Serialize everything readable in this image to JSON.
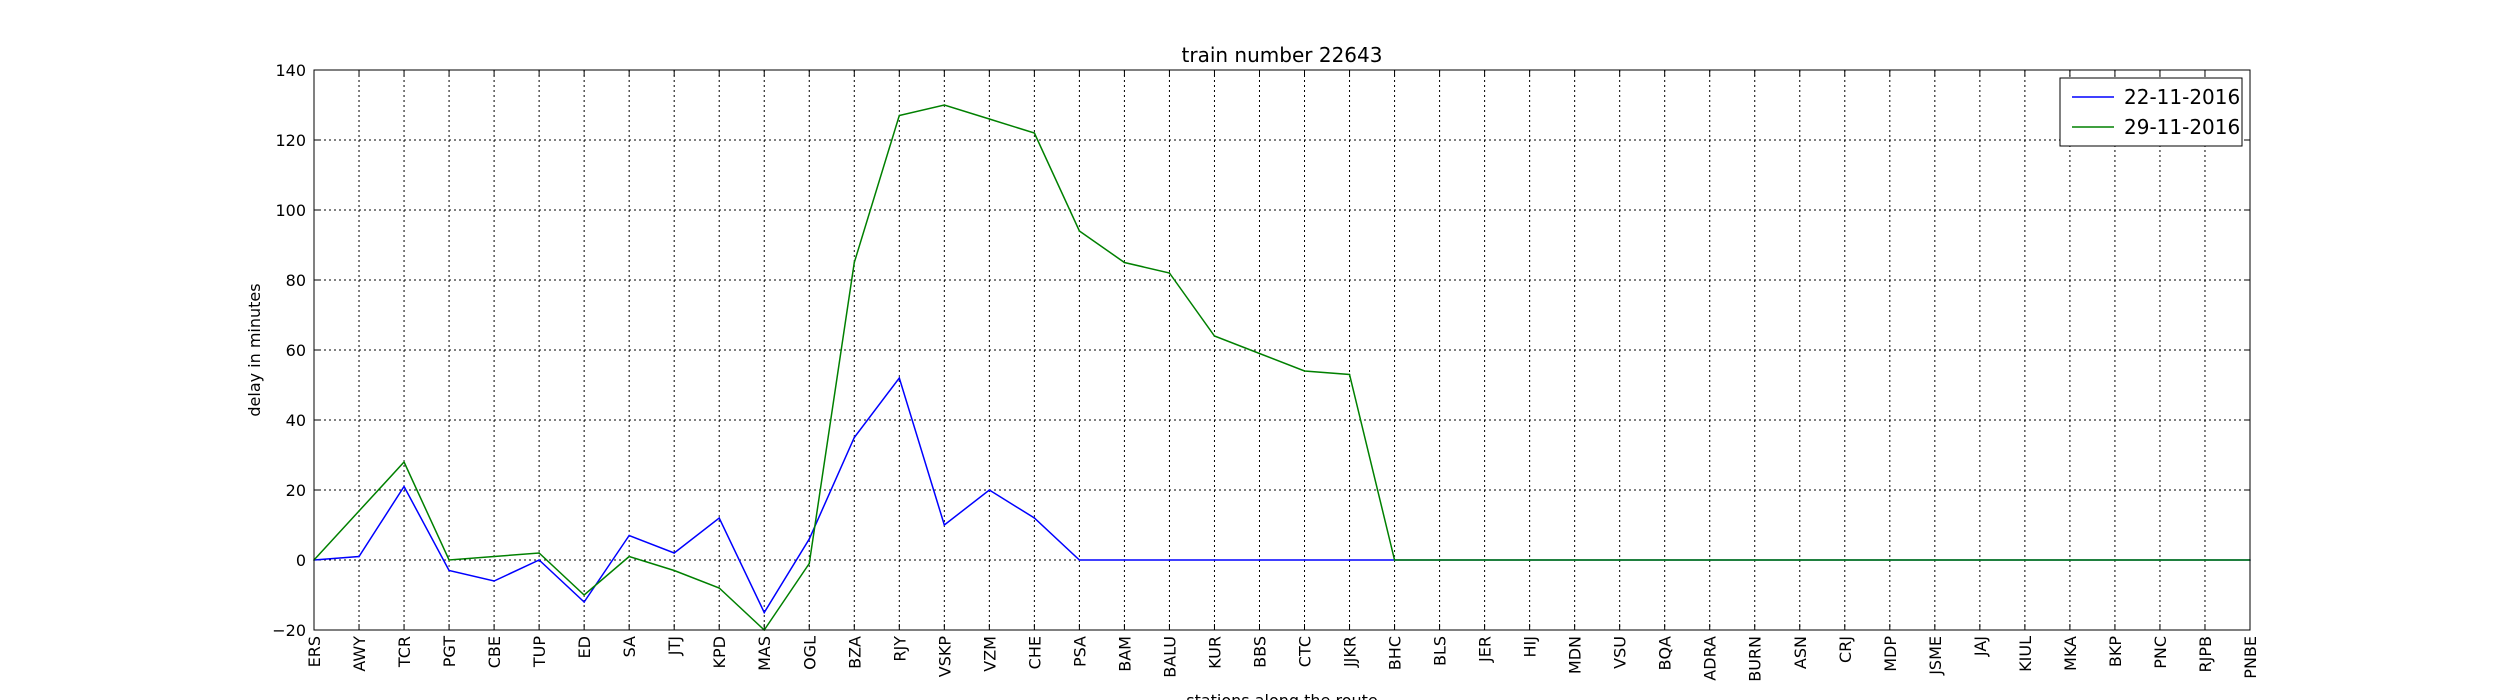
{
  "chart_data": {
    "type": "line",
    "title": "train number 22643",
    "xlabel": "stations along the route",
    "ylabel": "delay in minutes",
    "ylim": [
      -20,
      140
    ],
    "yticks": [
      -20,
      0,
      20,
      40,
      60,
      80,
      100,
      120,
      140
    ],
    "grid": true,
    "legend_position": "top-right",
    "categories": [
      "ERS",
      "AWY",
      "TCR",
      "PGT",
      "CBE",
      "TUP",
      "ED",
      "SA",
      "JTJ",
      "KPD",
      "MAS",
      "OGL",
      "BZA",
      "RJY",
      "VSKP",
      "VZM",
      "CHE",
      "PSA",
      "BAM",
      "BALU",
      "KUR",
      "BBS",
      "CTC",
      "JJKR",
      "BHC",
      "BLS",
      "JER",
      "HIJ",
      "MDN",
      "VSU",
      "BQA",
      "ADRA",
      "BURN",
      "ASN",
      "CRJ",
      "MDP",
      "JSME",
      "JAJ",
      "KIUL",
      "MKA",
      "BKP",
      "PNC",
      "RJPB",
      "PNBE"
    ],
    "series": [
      {
        "name": "22-11-2016",
        "color": "#0000ff",
        "values": [
          0,
          1,
          21,
          -3,
          -6,
          0,
          -12,
          7,
          2,
          12,
          -15,
          6,
          35,
          52,
          10,
          20,
          12,
          0,
          0,
          0,
          0,
          0,
          0,
          0,
          0,
          0,
          0,
          0,
          0,
          0,
          0,
          0,
          0,
          0,
          0,
          0,
          0,
          0,
          0,
          0,
          0,
          0,
          0,
          0
        ]
      },
      {
        "name": "29-11-2016",
        "color": "#008000",
        "values": [
          0,
          14,
          28,
          0,
          1,
          2,
          -10,
          1,
          -3,
          -8,
          -20,
          -1,
          85,
          127,
          130,
          126,
          122,
          94,
          85,
          82,
          64,
          59,
          54,
          53,
          0,
          0,
          0,
          0,
          0,
          0,
          0,
          0,
          0,
          0,
          0,
          0,
          0,
          0,
          0,
          0,
          0,
          0,
          0,
          0
        ]
      }
    ]
  }
}
